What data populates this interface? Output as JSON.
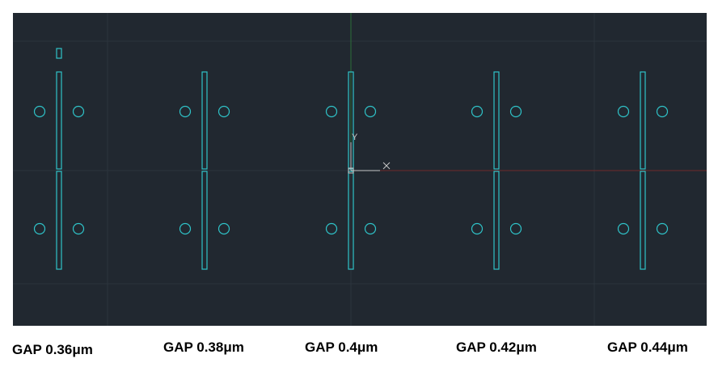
{
  "ucs": {
    "x_label": "X",
    "y_label": "Y"
  },
  "colors": {
    "background": "#212830",
    "grid": "#2c343d",
    "shape_stroke": "#2fc3c8",
    "x_axis": "#6e2a2a",
    "y_axis": "#2a6e38",
    "ucs_icon": "#c8c8c8"
  },
  "structures": [
    {
      "label": "GAP 0.36μm"
    },
    {
      "label": "GAP 0.38μm"
    },
    {
      "label": "GAP 0.4μm"
    },
    {
      "label": "GAP 0.42μm"
    },
    {
      "label": "GAP 0.44μm"
    }
  ]
}
